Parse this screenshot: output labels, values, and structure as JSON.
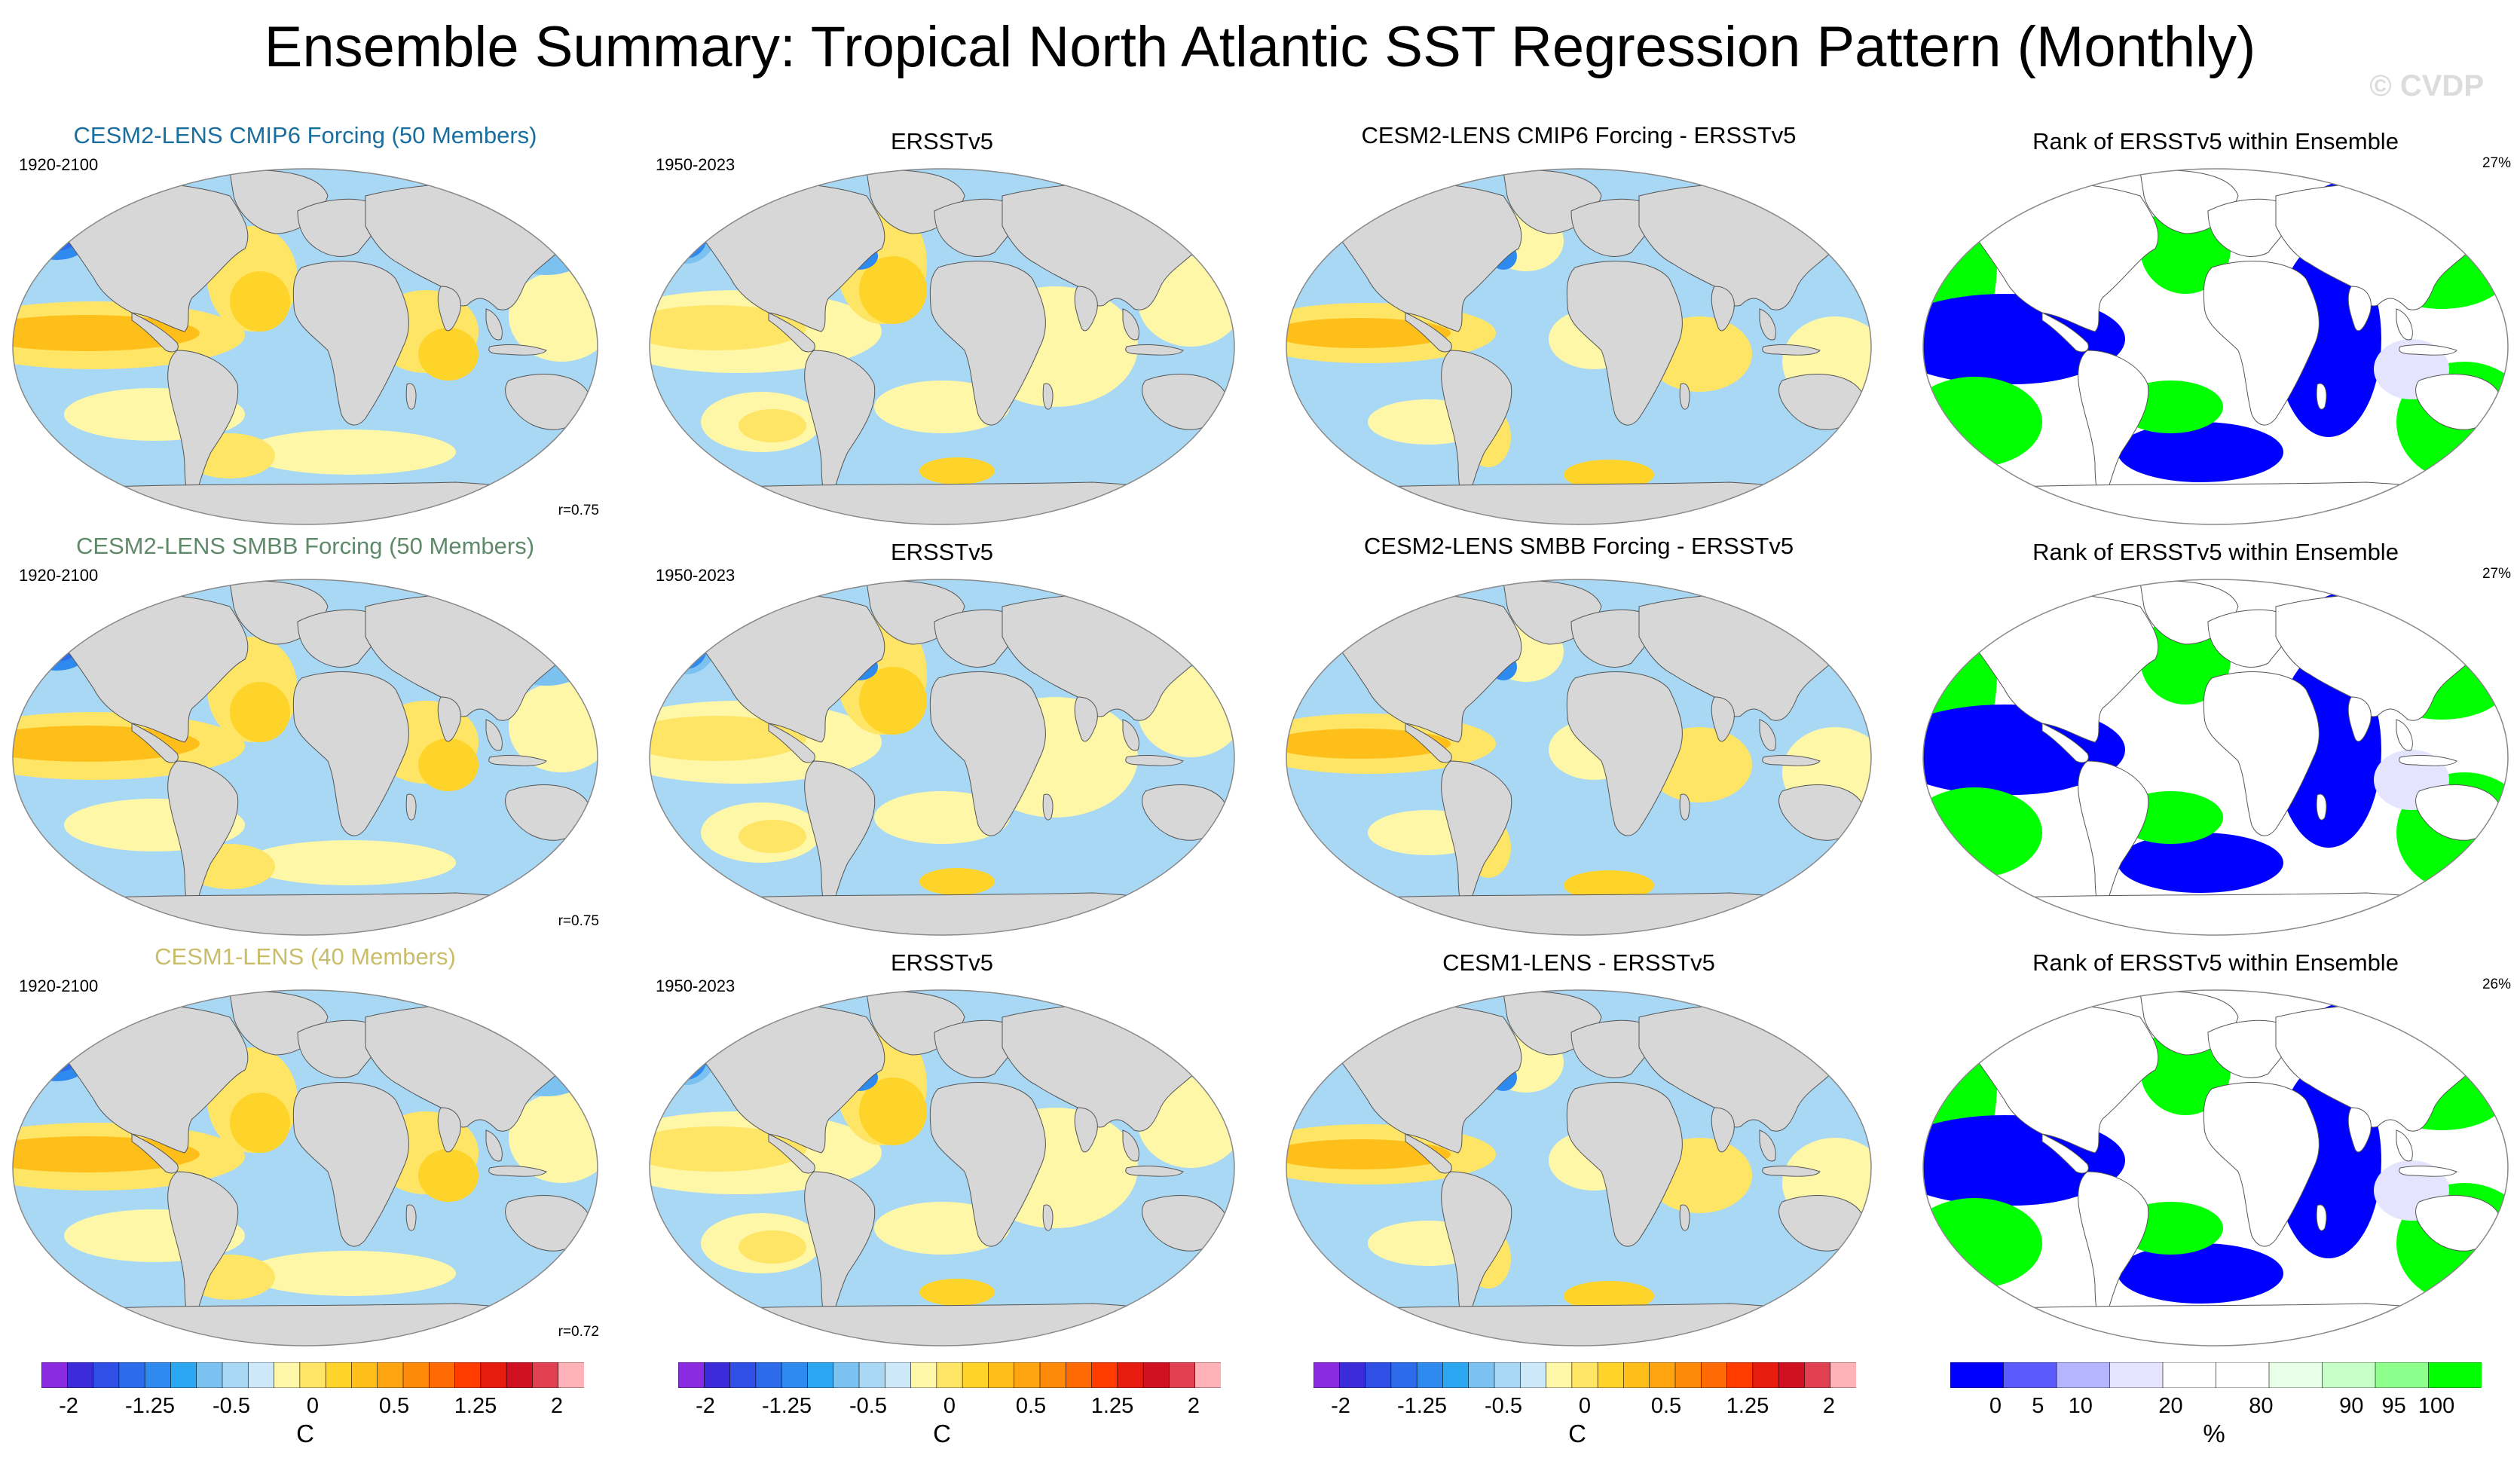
{
  "title": "Ensemble Summary: Tropical North Atlantic SST Regression Pattern (Monthly)",
  "watermark": "© CVDP",
  "colors": {
    "land": "#d7d7d7",
    "coast": "#555555",
    "sst_scale": [
      "#8a2be2",
      "#3b2bd9",
      "#2f4fe6",
      "#2c6be9",
      "#2f8af0",
      "#2ba6f0",
      "#7cc2f0",
      "#a8d8f4",
      "#cde8f8",
      "#fff7a8",
      "#ffe566",
      "#ffd42a",
      "#ffbf1a",
      "#ffa510",
      "#ff8a0a",
      "#ff6a05",
      "#ff3b00",
      "#e81b0f",
      "#d01020",
      "#e04050",
      "#ffb3b9"
    ],
    "rank_scale": [
      "#0000ff",
      "#5a5aff",
      "#b4b4ff",
      "#e4e4ff",
      "#ffffff",
      "#ffffff",
      "#e8ffe8",
      "#c8ffc8",
      "#8cff8c",
      "#00ff00"
    ]
  },
  "rows": [
    {
      "model": {
        "title": "CESM2-LENS CMIP6 Forcing (50 Members)",
        "title_color": "#1a6e9e",
        "years": "1920-2100",
        "r": "r=0.75"
      },
      "obs": {
        "title": "ERSSTv5",
        "years": "1950-2023"
      },
      "diff": {
        "title": "CESM2-LENS CMIP6 Forcing - ERSSTv5"
      },
      "rank": {
        "title": "Rank of ERSSTv5 within Ensemble",
        "pct": "27%"
      }
    },
    {
      "model": {
        "title": "CESM2-LENS SMBB Forcing (50 Members)",
        "title_color": "#5e8a6a",
        "years": "1920-2100",
        "r": "r=0.75"
      },
      "obs": {
        "title": "ERSSTv5",
        "years": "1950-2023"
      },
      "diff": {
        "title": "CESM2-LENS SMBB Forcing - ERSSTv5"
      },
      "rank": {
        "title": "Rank of ERSSTv5 within Ensemble",
        "pct": "27%"
      }
    },
    {
      "model": {
        "title": "CESM1-LENS (40 Members)",
        "title_color": "#c9bd6a",
        "years": "1920-2100",
        "r": "r=0.72"
      },
      "obs": {
        "title": "ERSSTv5",
        "years": "1950-2023"
      },
      "diff": {
        "title": "CESM1-LENS - ERSSTv5"
      },
      "rank": {
        "title": "Rank of ERSSTv5 within Ensemble",
        "pct": "26%"
      }
    }
  ],
  "colorbars": {
    "sst": {
      "ticks": [
        "-2",
        "-1.25",
        "-0.5",
        "0",
        "0.5",
        "1.25",
        "2"
      ],
      "unit": "C"
    },
    "rank": {
      "ticks": [
        "0",
        "5",
        "10",
        "20",
        "80",
        "90",
        "95",
        "100"
      ],
      "unit": "%"
    }
  }
}
